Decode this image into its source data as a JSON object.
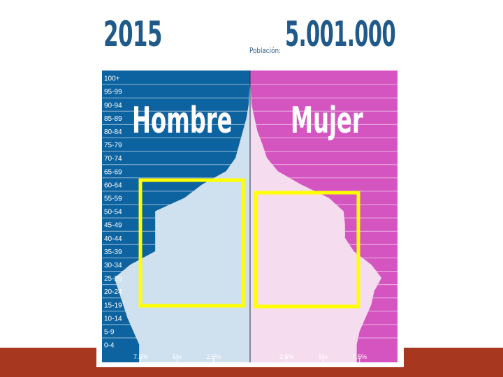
{
  "header": {
    "year": "2015",
    "population_label": "Población:",
    "population_value": "5.001.000"
  },
  "colors": {
    "male_bg": "#0d63a0",
    "female_bg": "#d455c0",
    "male_bar": "#cfe0ee",
    "female_bar": "#f6dcef",
    "highlight": "#ffff00",
    "footer": "#a8371f"
  },
  "chart_data": {
    "type": "bar",
    "orientation": "horizontal",
    "subtype": "population-pyramid",
    "title": "",
    "categories": [
      "100+",
      "95-99",
      "90-94",
      "85-89",
      "80-84",
      "75-79",
      "70-74",
      "65-69",
      "60-64",
      "55-59",
      "50-54",
      "45-49",
      "40-44",
      "35-39",
      "30-34",
      "25-29",
      "20-24",
      "15-19",
      "10-14",
      "5-9",
      "0-4"
    ],
    "series": [
      {
        "name": "Hombre",
        "values": [
          0.0,
          0.05,
          0.1,
          0.25,
          0.5,
          0.75,
          1.0,
          1.65,
          3.3,
          4.5,
          6.5,
          6.5,
          6.5,
          6.5,
          8.2,
          9.3,
          9.0,
          8.7,
          8.4,
          8.0,
          7.6
        ]
      },
      {
        "name": "Mujer",
        "values": [
          0.0,
          0.05,
          0.1,
          0.3,
          0.5,
          0.85,
          1.15,
          1.9,
          3.5,
          5.4,
          6.4,
          6.5,
          6.5,
          7.1,
          8.3,
          9.0,
          8.5,
          8.3,
          7.9,
          7.5,
          7.3
        ]
      }
    ],
    "xlim": [
      0,
      10
    ],
    "tick_labels": {
      "left": [
        "7.5%",
        "5%",
        "2.5%"
      ],
      "right": [
        "2.5%",
        "5%",
        "7.5%"
      ]
    },
    "tick_values": [
      7.5,
      5,
      2.5
    ],
    "highlight_boxes": [
      {
        "side": "Hombre",
        "from": "15-19",
        "to": "60-64"
      },
      {
        "side": "Mujer",
        "from": "15-19",
        "to": "55-59"
      }
    ]
  }
}
